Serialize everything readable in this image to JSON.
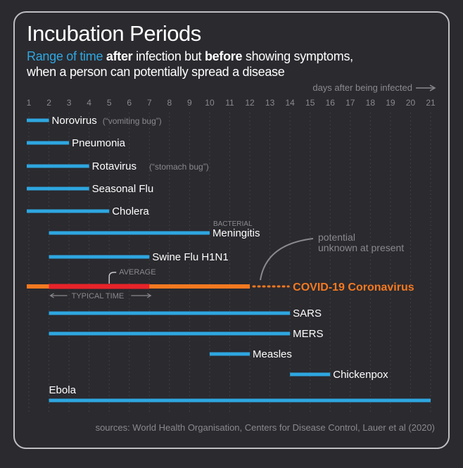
{
  "title": "Incubation Periods",
  "subtitle": {
    "line1_parts": [
      "Range of time",
      " ",
      "after",
      " infection but ",
      "before",
      " showing symptoms,"
    ],
    "line2": "when a person can potentially spread a disease"
  },
  "source": "sources: World Health Organisation, Centers for Disease Control, Lauer et al (2020)",
  "colors": {
    "background": "#2b2a2f",
    "bar": "#2ea7e0",
    "covid": "#f47920",
    "typical": "#e8232a",
    "muted": "#8a898e",
    "text": "#ffffff"
  },
  "chart_data": {
    "type": "bar",
    "orientation": "horizontal-range",
    "x_axis_label": "days after being infected",
    "x_ticks": [
      1,
      2,
      3,
      4,
      5,
      6,
      7,
      8,
      9,
      10,
      11,
      12,
      13,
      14,
      15,
      16,
      17,
      18,
      19,
      20,
      21
    ],
    "xlim": [
      1,
      21
    ],
    "series": [
      {
        "name": "Norovirus",
        "note": "(“vomiting bug”)",
        "start": 1,
        "end": 2
      },
      {
        "name": "Pneumonia",
        "start": 1,
        "end": 3
      },
      {
        "name": "Rotavirus",
        "note": "(“stomach bug”)",
        "start": 1,
        "end": 4
      },
      {
        "name": "Seasonal Flu",
        "start": 1,
        "end": 4
      },
      {
        "name": "Cholera",
        "start": 1,
        "end": 5
      },
      {
        "name": "Meningitis",
        "prefix": "BACTERIAL",
        "start": 2,
        "end": 10
      },
      {
        "name": "Swine Flu H1N1",
        "start": 2,
        "end": 7
      },
      {
        "name": "COVID-19 Coronavirus",
        "start": 1,
        "end": 12,
        "potential_end": 14,
        "typical_start": 2,
        "typical_end": 7,
        "average": 5,
        "highlight": true
      },
      {
        "name": "SARS",
        "start": 2,
        "end": 14
      },
      {
        "name": "MERS",
        "start": 2,
        "end": 14
      },
      {
        "name": "Measles",
        "start": 10,
        "end": 12
      },
      {
        "name": "Chickenpox",
        "start": 14,
        "end": 16
      },
      {
        "name": "Ebola",
        "start": 2,
        "end": 21,
        "label_above": true
      }
    ],
    "annotations": {
      "average_label": "AVERAGE",
      "typical_label": "TYPICAL TIME",
      "potential_line1": "potential",
      "potential_line2": "unknown at present"
    }
  }
}
